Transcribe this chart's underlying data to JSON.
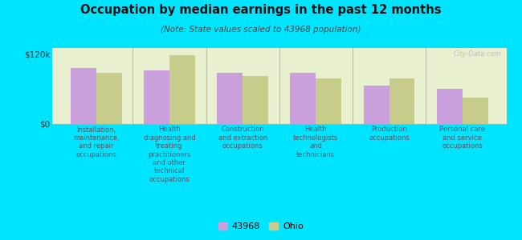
{
  "title": "Occupation by median earnings in the past 12 months",
  "subtitle": "(Note: State values scaled to 43968 population)",
  "categories": [
    "Installation,\nmaintenance,\nand repair\noccupations",
    "Health\ndiagnosing and\ntreating\npractitioners\nand other\ntechnical\noccupations",
    "Construction\nand extraction\noccupations",
    "Health\ntechnologists\nand\ntechnicians",
    "Production\noccupations",
    "Personal care\nand service\noccupations"
  ],
  "values_43968": [
    95000,
    92000,
    88000,
    87000,
    65000,
    60000
  ],
  "values_ohio": [
    88000,
    118000,
    82000,
    78000,
    78000,
    45000
  ],
  "color_43968": "#c9a0dc",
  "color_ohio": "#c8cc8a",
  "ylim": [
    0,
    130000
  ],
  "yticks": [
    0,
    120000
  ],
  "ytick_labels": [
    "$0",
    "$120k"
  ],
  "plot_bg_color": "#e8f0d0",
  "outer_background": "#00e5ff",
  "label_color": "#555566",
  "legend_label_43968": "43968",
  "legend_label_ohio": "Ohio",
  "watermark": "City-Data.com",
  "divider_color": "#bbbbaa"
}
